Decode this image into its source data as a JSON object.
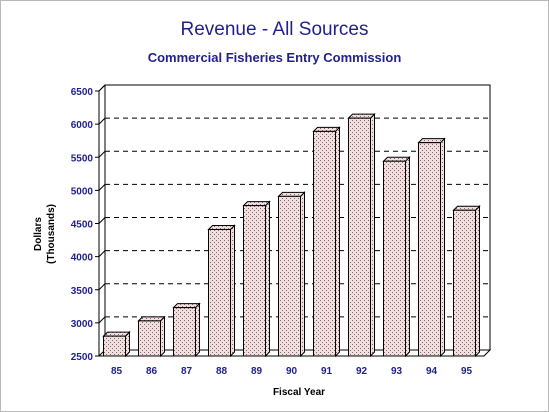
{
  "chart_data": {
    "type": "bar",
    "title": "Revenue - All Sources",
    "subtitle": "Commercial Fisheries Entry Commission",
    "xlabel": "Fiscal Year",
    "ylabel": [
      "Dollars",
      "(Thousands)"
    ],
    "categories": [
      "85",
      "86",
      "87",
      "88",
      "89",
      "90",
      "91",
      "92",
      "93",
      "94",
      "95"
    ],
    "values": [
      2800,
      3030,
      3230,
      4410,
      4770,
      4910,
      5890,
      6090,
      5440,
      5720,
      4700
    ],
    "ylim": [
      2500,
      6500
    ],
    "yticks": [
      "2500",
      "3000",
      "3500",
      "4000",
      "4500",
      "5000",
      "5500",
      "6000",
      "6500"
    ],
    "grid": true,
    "colors": {
      "bar_fill": "#f2dede",
      "bar_dots": "#7a6a6a",
      "bar_edge": "#000000",
      "text": "#1f1f8e",
      "grid": "#000000"
    }
  }
}
